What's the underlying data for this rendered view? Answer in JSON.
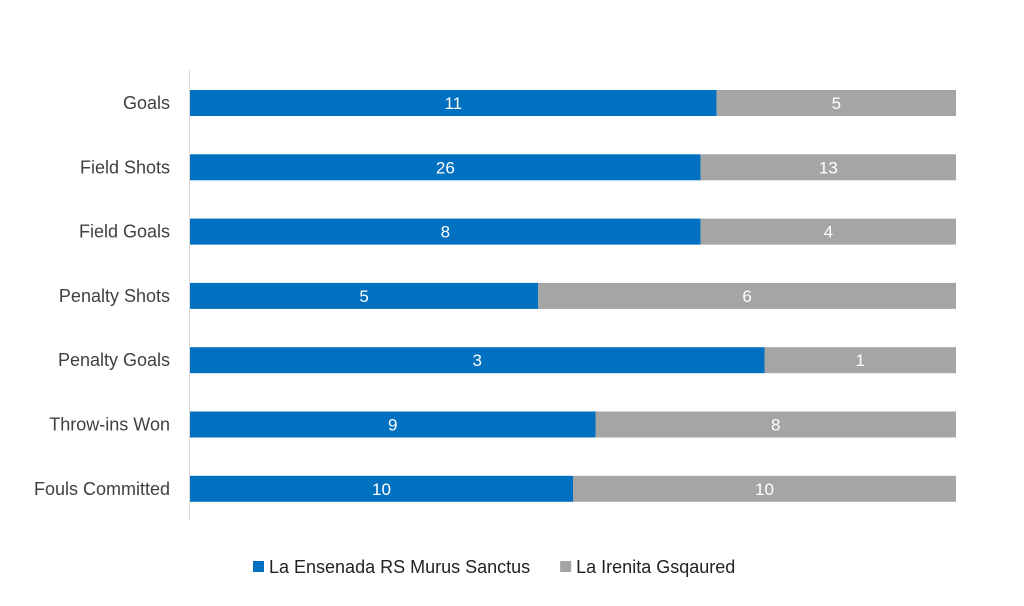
{
  "colors": {
    "series_a": "#0070C0",
    "series_b": "#A5A5A5",
    "axis": "#D9D9D9"
  },
  "chart_data": {
    "type": "bar",
    "orientation": "horizontal",
    "stacking": "percent",
    "categories": [
      "Goals",
      "Field Shots",
      "Field Goals",
      "Penalty Shots",
      "Penalty Goals",
      "Throw-ins Won",
      "Fouls Committed"
    ],
    "series": [
      {
        "name": "La Ensenada RS Murus Sanctus",
        "values": [
          11,
          26,
          8,
          5,
          3,
          9,
          10
        ]
      },
      {
        "name": "La Irenita Gsqaured",
        "values": [
          5,
          13,
          4,
          6,
          1,
          8,
          10
        ]
      }
    ],
    "title": "",
    "xlabel": "",
    "ylabel": "",
    "grid": false,
    "legend": "bottom"
  }
}
